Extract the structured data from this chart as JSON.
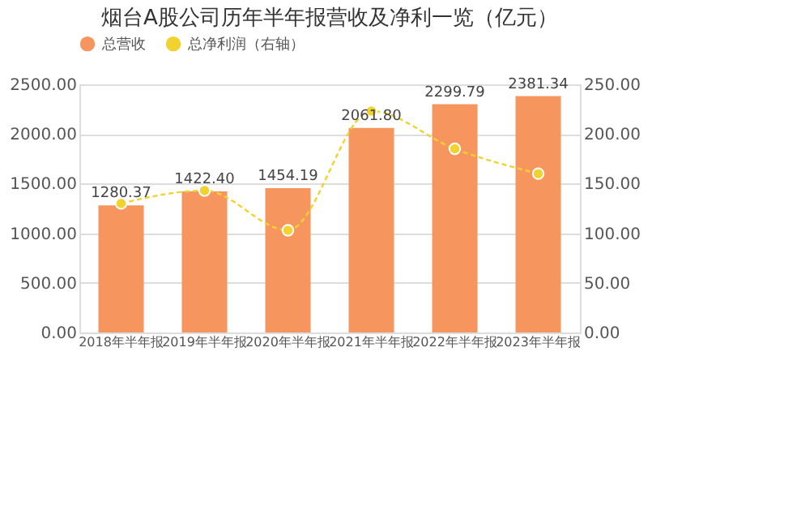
{
  "chart_data": {
    "type": "bar",
    "title": "烟台A股公司历年半年报营收及净利一览（亿元）",
    "categories": [
      "2018年半年报",
      "2019年半年报",
      "2020年半年报",
      "2021年半年报",
      "2022年半年报",
      "2023年半年报"
    ],
    "series": [
      {
        "name": "总营收",
        "color": "#f7955f",
        "values": [
          1280.37,
          1422.4,
          1454.19,
          2061.8,
          2299.79,
          2381.34
        ],
        "value_labels": [
          "1280.37",
          "1422.40",
          "1454.19",
          "2061.80",
          "2299.79",
          "2381.34"
        ]
      },
      {
        "name": "总净利润（右轴）",
        "type": "line",
        "axis": "y2",
        "color": "#f2d22e",
        "marker": "circle",
        "line_style": "dashed",
        "values": [
          130,
          143,
          103,
          223,
          185,
          160
        ]
      }
    ],
    "ylim": [
      0,
      2500
    ],
    "yticks": [
      {
        "value": 0,
        "label": "0.00"
      },
      {
        "value": 500,
        "label": "500.00"
      },
      {
        "value": 1000,
        "label": "1000.00"
      },
      {
        "value": 1500,
        "label": "1500.00"
      },
      {
        "value": 2000,
        "label": "2000.00"
      },
      {
        "value": 2500,
        "label": "2500.00"
      }
    ],
    "y2lim": [
      0,
      250
    ],
    "y2ticks": [
      {
        "value": 0,
        "label": "0.00"
      },
      {
        "value": 50,
        "label": "50.00"
      },
      {
        "value": 100,
        "label": "100.00"
      },
      {
        "value": 150,
        "label": "150.00"
      },
      {
        "value": 200,
        "label": "200.00"
      },
      {
        "value": 250,
        "label": "250.00"
      }
    ],
    "grid": "y",
    "legend": "top"
  }
}
